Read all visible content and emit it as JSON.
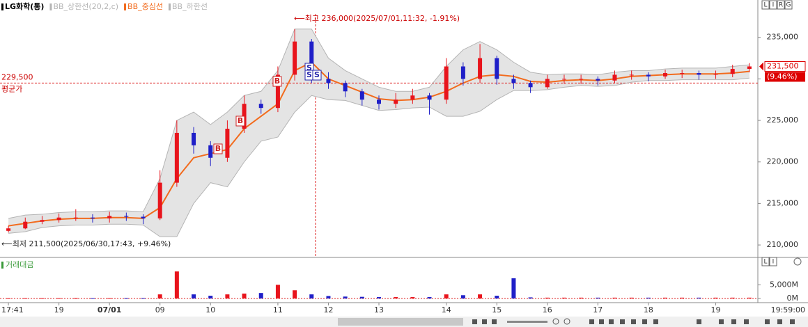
{
  "chart_data": [
    {
      "type": "candlestick",
      "title": "LG화학(통)",
      "categories": [
        "17:41",
        null,
        null,
        "19",
        null,
        null,
        "07/01",
        null,
        null,
        "09",
        null,
        null,
        "10",
        null,
        null,
        null,
        "11",
        null,
        null,
        "12",
        null,
        null,
        "13",
        null,
        null,
        null,
        "14",
        null,
        null,
        "15",
        null,
        null,
        "16",
        null,
        null,
        "17",
        null,
        null,
        "18",
        null,
        null,
        null,
        "19",
        null,
        null
      ],
      "open": [
        211700,
        212000,
        212800,
        213000,
        213300,
        213300,
        213200,
        213500,
        213400,
        213200,
        217500,
        223500,
        222000,
        220500,
        224000,
        227000,
        226500,
        230500,
        234500,
        230000,
        229500,
        228500,
        227500,
        227000,
        227500,
        228000,
        227500,
        231500,
        230000,
        232500,
        230000,
        229500,
        229000,
        230000,
        230000,
        230000,
        229800,
        230500,
        230500,
        230300,
        230700,
        230700,
        230500,
        230600,
        231200
      ],
      "high": [
        212300,
        213300,
        213500,
        213800,
        214300,
        213700,
        214000,
        213900,
        213700,
        219000,
        225000,
        224200,
        222500,
        225000,
        228000,
        227500,
        231500,
        236000,
        234800,
        230800,
        229800,
        228800,
        228000,
        228300,
        228800,
        228300,
        232500,
        232000,
        234200,
        232800,
        230500,
        229800,
        230500,
        230500,
        230500,
        230300,
        231000,
        231000,
        230800,
        231100,
        231100,
        231000,
        231000,
        231700,
        231900
      ],
      "low": [
        211500,
        211900,
        212500,
        212700,
        212900,
        212700,
        212700,
        212900,
        212500,
        213000,
        217000,
        221000,
        219500,
        220000,
        223500,
        225800,
        226000,
        229800,
        229500,
        228800,
        227800,
        226800,
        226300,
        226500,
        227000,
        225700,
        227000,
        229200,
        229500,
        229300,
        228800,
        228300,
        228800,
        229400,
        229400,
        229200,
        229500,
        229900,
        229700,
        230000,
        230100,
        229900,
        230000,
        230200,
        230800
      ],
      "close": [
        212000,
        212800,
        213000,
        213300,
        213300,
        213200,
        213500,
        213400,
        213200,
        217500,
        223500,
        222000,
        220500,
        224000,
        227000,
        226500,
        230500,
        234500,
        230000,
        229500,
        228500,
        227500,
        227000,
        227500,
        228000,
        227500,
        231500,
        230000,
        232500,
        230000,
        229500,
        229000,
        230000,
        230000,
        230000,
        229800,
        230500,
        230500,
        230300,
        230700,
        230700,
        230500,
        230600,
        231200,
        231500
      ],
      "up_color": "#e8141c",
      "down_color": "#1f1fc8",
      "band_fill": "#e4e4e4",
      "series": [
        {
          "name": "BB_상한선(20,2,c)",
          "color": "#b4b4b4",
          "values": [
            213200,
            213600,
            213700,
            213900,
            214000,
            214000,
            214100,
            214100,
            214000,
            218000,
            225000,
            226000,
            224500,
            226000,
            228000,
            228500,
            231000,
            236000,
            236000,
            232500,
            231000,
            230000,
            229000,
            228500,
            228500,
            229000,
            231500,
            233500,
            234500,
            233500,
            232000,
            230800,
            230500,
            230600,
            230600,
            230500,
            230800,
            231000,
            231000,
            231200,
            231300,
            231300,
            231300,
            231500,
            231700
          ]
        },
        {
          "name": "BB_중심선",
          "color": "#f26b1d",
          "values": [
            212300,
            212600,
            212900,
            213100,
            213200,
            213200,
            213300,
            213300,
            213200,
            214500,
            218000,
            220500,
            221000,
            221500,
            224000,
            225500,
            227000,
            231000,
            232000,
            230000,
            229200,
            228400,
            227600,
            227400,
            227500,
            227800,
            228500,
            229500,
            230300,
            230500,
            230300,
            229700,
            229600,
            229800,
            229900,
            229800,
            230000,
            230300,
            230400,
            230500,
            230600,
            230600,
            230600,
            230700,
            230900
          ]
        },
        {
          "name": "BB_하한선",
          "color": "#b4b4b4",
          "values": [
            211400,
            211600,
            212100,
            212300,
            212400,
            212400,
            212500,
            212500,
            212400,
            211000,
            211000,
            215000,
            217500,
            217000,
            220000,
            222500,
            223000,
            226000,
            228000,
            227500,
            227400,
            226800,
            226200,
            226300,
            226500,
            226600,
            225500,
            225500,
            226100,
            227500,
            228600,
            228600,
            228700,
            229000,
            229200,
            229100,
            229200,
            229600,
            229800,
            229800,
            229900,
            229900,
            229900,
            229900,
            230100
          ]
        }
      ],
      "ylim": [
        208500,
        239500
      ],
      "yticks": [
        {
          "value": 210000,
          "label": "210,000"
        },
        {
          "value": 215000,
          "label": "215,000"
        },
        {
          "value": 220000,
          "label": "220,000"
        },
        {
          "value": 225000,
          "label": "225,000"
        },
        {
          "value": 230000,
          "label": "230,000"
        },
        {
          "value": 235000,
          "label": "235,000"
        }
      ],
      "annotations": [
        "⟵최고 236,000(2025/07/01,11:32, -1.91%)",
        "⟵최저 211,500(2025/06/30,17:43, +9.46%)"
      ],
      "average_price": {
        "value": 229500,
        "label": "229,500"
      },
      "average_label": "평균가",
      "last_price": {
        "value": 231500,
        "label": "231,500"
      },
      "last_change": "(9.46%)",
      "signals": [
        "B",
        "B",
        "B",
        "S",
        "S",
        "S"
      ],
      "x_end_label": "19:59:00",
      "buttons": [
        "L",
        "I",
        "R",
        "G"
      ]
    },
    {
      "type": "bar",
      "title": "거래대금",
      "values": [
        100,
        150,
        150,
        150,
        200,
        150,
        150,
        200,
        200,
        1500,
        9900,
        1500,
        1000,
        1500,
        1800,
        2000,
        5000,
        3000,
        1500,
        900,
        700,
        600,
        500,
        500,
        500,
        500,
        1500,
        1200,
        1500,
        1000,
        7400,
        400,
        300,
        300,
        300,
        300,
        300,
        300,
        300,
        300,
        300,
        300,
        300,
        300,
        300
      ],
      "ylim": [
        0,
        13000
      ],
      "yticks": [
        {
          "value": 0,
          "label": "0M"
        },
        {
          "value": 5000,
          "label": "5,000M"
        }
      ],
      "buttons": [
        "L",
        "I"
      ]
    }
  ]
}
